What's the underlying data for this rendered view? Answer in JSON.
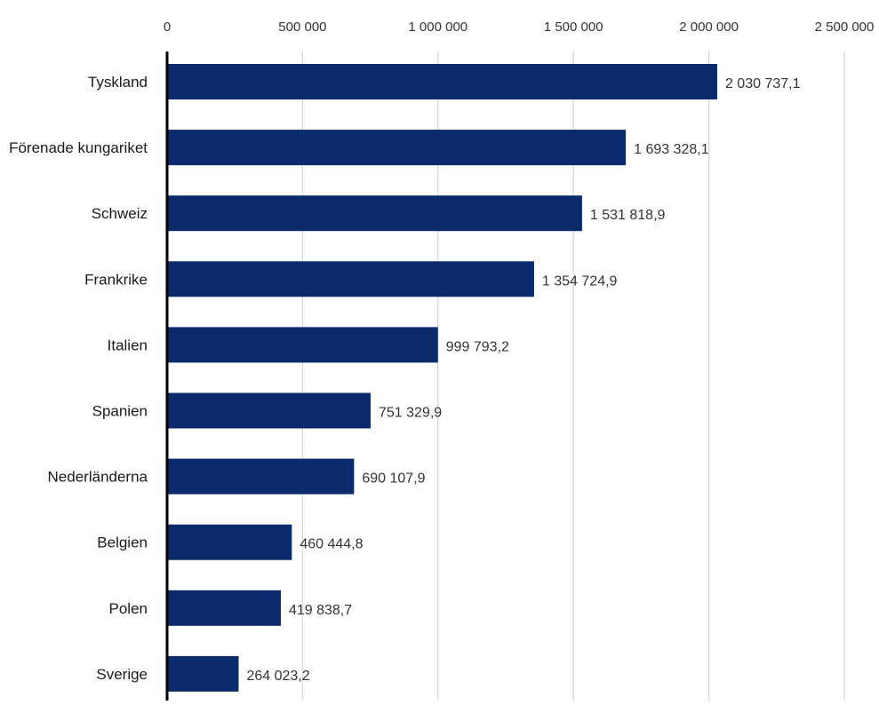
{
  "chart_data": {
    "type": "bar",
    "orientation": "horizontal",
    "categories": [
      "Tyskland",
      "Förenade kungariket",
      "Schweiz",
      "Frankrike",
      "Italien",
      "Spanien",
      "Nederländerna",
      "Belgien",
      "Polen",
      "Sverige"
    ],
    "values": [
      2030737.1,
      1693328.1,
      1531818.9,
      1354724.9,
      999793.2,
      751329.9,
      690107.9,
      460444.8,
      419838.7,
      264023.2
    ],
    "value_labels": [
      "2 030 737,1",
      "1 693 328,1",
      "1 531 818,9",
      "1 354 724,9",
      "999 793,2",
      "751 329,9",
      "690 107,9",
      "460 444,8",
      "419 838,7",
      "264 023,2"
    ],
    "xlim": [
      0,
      2500000
    ],
    "x_ticks": [
      0,
      500000,
      1000000,
      1500000,
      2000000,
      2500000
    ],
    "x_tick_labels": [
      "0",
      "500 000",
      "1 000 000",
      "1 500 000",
      "2 000 000",
      "2 500 000"
    ],
    "x_axis_position": "top",
    "grid": true,
    "legend": "none",
    "title": "",
    "xlabel": "",
    "ylabel": "",
    "colors": {
      "bar": "#0b2a6b",
      "grid": "#d9d9d9",
      "axis": "#000000"
    }
  }
}
